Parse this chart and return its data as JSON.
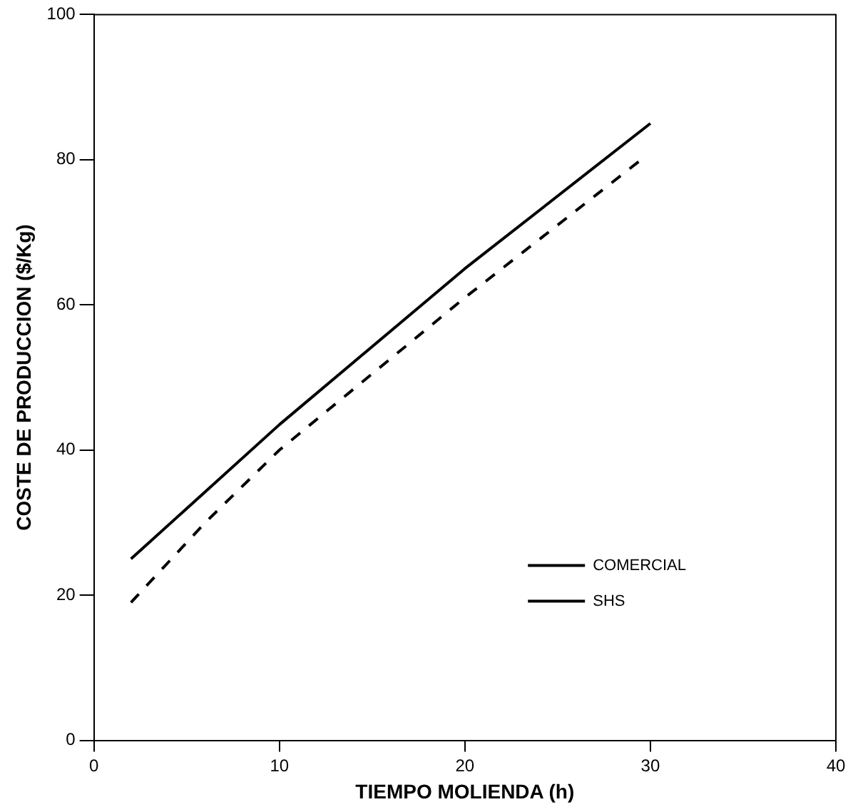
{
  "chart_data": {
    "type": "line",
    "xlabel": "TIEMPO MOLIENDA (h)",
    "ylabel": "COSTE DE PRODUCCION ($/Kg)",
    "xlim": [
      0,
      40
    ],
    "xticks": [
      0,
      10,
      20,
      30,
      40
    ],
    "ylim": [
      0,
      100
    ],
    "yticks": [
      0,
      20,
      40,
      60,
      80,
      100
    ],
    "grid": false,
    "legend": "bottom right",
    "marker": "none",
    "series": [
      {
        "name": "COMERCIAL",
        "color": "#000000",
        "line_style": "solid",
        "x": [
          2,
          10,
          20,
          30
        ],
        "values": [
          25,
          43.5,
          65,
          85
        ]
      },
      {
        "name": "SHS",
        "color": "#000000",
        "line_style": "dashed",
        "x": [
          2,
          6,
          10,
          20,
          29.5
        ],
        "values": [
          19,
          30,
          40,
          61,
          80
        ]
      }
    ]
  }
}
